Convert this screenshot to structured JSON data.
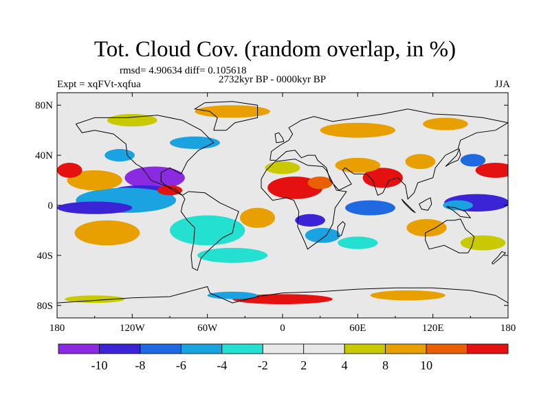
{
  "title": "Tot. Cloud Cov. (random overlap, in %)",
  "stats": "rmsd= 4.90634 diff= 0.105618",
  "period": "2732kyr BP - 0000kyr BP",
  "experiment": "Expt = xqFVt-xqfua",
  "season": "JJA",
  "map": {
    "projection": "cylindrical equidistant",
    "lon_range": [
      -180,
      180
    ],
    "lat_range": [
      -90,
      90
    ],
    "lon_ticks": [
      {
        "value": -180,
        "label": "180"
      },
      {
        "value": -120,
        "label": "120W"
      },
      {
        "value": -60,
        "label": "60W"
      },
      {
        "value": 0,
        "label": "0"
      },
      {
        "value": 60,
        "label": "60E"
      },
      {
        "value": 120,
        "label": "120E"
      },
      {
        "value": 180,
        "label": "180"
      }
    ],
    "lat_ticks": [
      {
        "value": 80,
        "label": "80N"
      },
      {
        "value": 40,
        "label": "40N"
      },
      {
        "value": 0,
        "label": "0"
      },
      {
        "value": -40,
        "label": "40S"
      },
      {
        "value": -80,
        "label": "80S"
      }
    ]
  },
  "colorbar": {
    "colors": [
      "#8a2be2",
      "#3b23d6",
      "#1f6ae0",
      "#1aa3e0",
      "#24e0d0",
      "#e8e8e8",
      "#e8e8e8",
      "#c9c900",
      "#e8a000",
      "#e86000",
      "#e51010"
    ],
    "labels": [
      "-10",
      "-8",
      "-6",
      "-4",
      "-2",
      "2",
      "4",
      "8",
      "10"
    ]
  },
  "anomalies": [
    {
      "lon": -102,
      "lat": 22,
      "rx": 24,
      "ry": 9,
      "level": "c0"
    },
    {
      "lon": -112,
      "lat": 10,
      "rx": 26,
      "ry": 6,
      "level": "c1"
    },
    {
      "lon": -125,
      "lat": 4,
      "rx": 40,
      "ry": 10,
      "level": "c3"
    },
    {
      "lon": -150,
      "lat": -2,
      "rx": 30,
      "ry": 5,
      "level": "c1"
    },
    {
      "lon": -90,
      "lat": 12,
      "rx": 10,
      "ry": 4,
      "level": "c10"
    },
    {
      "lon": -150,
      "lat": 20,
      "rx": 22,
      "ry": 8,
      "level": "c8"
    },
    {
      "lon": -170,
      "lat": 28,
      "rx": 10,
      "ry": 6,
      "level": "c10"
    },
    {
      "lon": -130,
      "lat": 40,
      "rx": 12,
      "ry": 5,
      "level": "c3"
    },
    {
      "lon": -140,
      "lat": -22,
      "rx": 26,
      "ry": 10,
      "level": "c8"
    },
    {
      "lon": -60,
      "lat": -20,
      "rx": 30,
      "ry": 12,
      "level": "c4"
    },
    {
      "lon": -40,
      "lat": -40,
      "rx": 28,
      "ry": 6,
      "level": "c4"
    },
    {
      "lon": -20,
      "lat": -10,
      "rx": 14,
      "ry": 8,
      "level": "c8"
    },
    {
      "lon": 10,
      "lat": 14,
      "rx": 22,
      "ry": 9,
      "level": "c10"
    },
    {
      "lon": 30,
      "lat": 18,
      "rx": 10,
      "ry": 5,
      "level": "c9"
    },
    {
      "lon": 0,
      "lat": 30,
      "rx": 14,
      "ry": 5,
      "level": "c7"
    },
    {
      "lon": 22,
      "lat": -12,
      "rx": 12,
      "ry": 5,
      "level": "c1"
    },
    {
      "lon": 32,
      "lat": -24,
      "rx": 14,
      "ry": 6,
      "level": "c3"
    },
    {
      "lon": 70,
      "lat": -2,
      "rx": 20,
      "ry": 6,
      "level": "c2"
    },
    {
      "lon": 60,
      "lat": -30,
      "rx": 16,
      "ry": 5,
      "level": "c4"
    },
    {
      "lon": 80,
      "lat": 22,
      "rx": 16,
      "ry": 8,
      "level": "c10"
    },
    {
      "lon": 60,
      "lat": 32,
      "rx": 18,
      "ry": 6,
      "level": "c8"
    },
    {
      "lon": 110,
      "lat": 35,
      "rx": 12,
      "ry": 6,
      "level": "c8"
    },
    {
      "lon": 170,
      "lat": 28,
      "rx": 16,
      "ry": 6,
      "level": "c10"
    },
    {
      "lon": 155,
      "lat": 2,
      "rx": 26,
      "ry": 7,
      "level": "c1"
    },
    {
      "lon": 140,
      "lat": 0,
      "rx": 12,
      "ry": 4,
      "level": "c3"
    },
    {
      "lon": 152,
      "lat": 36,
      "rx": 10,
      "ry": 5,
      "level": "c2"
    },
    {
      "lon": 115,
      "lat": -18,
      "rx": 16,
      "ry": 7,
      "level": "c8"
    },
    {
      "lon": 160,
      "lat": -30,
      "rx": 18,
      "ry": 6,
      "level": "c7"
    },
    {
      "lon": 60,
      "lat": 60,
      "rx": 30,
      "ry": 6,
      "level": "c8"
    },
    {
      "lon": -40,
      "lat": 75,
      "rx": 30,
      "ry": 5,
      "level": "c8"
    },
    {
      "lon": -120,
      "lat": 68,
      "rx": 20,
      "ry": 5,
      "level": "c7"
    },
    {
      "lon": -70,
      "lat": 50,
      "rx": 20,
      "ry": 5,
      "level": "c3"
    },
    {
      "lon": 130,
      "lat": 65,
      "rx": 18,
      "ry": 5,
      "level": "c8"
    },
    {
      "lon": 0,
      "lat": -75,
      "rx": 40,
      "ry": 4,
      "level": "c10"
    },
    {
      "lon": -40,
      "lat": -72,
      "rx": 20,
      "ry": 3,
      "level": "c3"
    },
    {
      "lon": 100,
      "lat": -72,
      "rx": 30,
      "ry": 4,
      "level": "c8"
    },
    {
      "lon": -150,
      "lat": -75,
      "rx": 24,
      "ry": 3,
      "level": "c7"
    }
  ]
}
